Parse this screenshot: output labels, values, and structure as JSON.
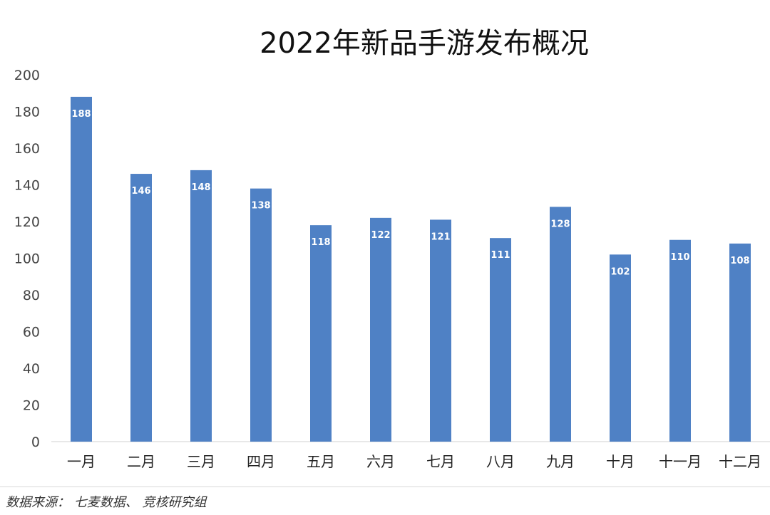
{
  "chart_data": {
    "type": "bar",
    "title": "2022年新品手游发布概况",
    "categories": [
      "一月",
      "二月",
      "三月",
      "四月",
      "五月",
      "六月",
      "七月",
      "八月",
      "九月",
      "十月",
      "十一月",
      "十二月"
    ],
    "values": [
      188,
      146,
      148,
      138,
      118,
      122,
      121,
      111,
      128,
      102,
      110,
      108
    ],
    "ylim": [
      0,
      200
    ],
    "yticks": [
      0,
      20,
      40,
      60,
      80,
      100,
      120,
      140,
      160,
      180,
      200
    ],
    "grid": false,
    "legend": "none",
    "bar_color": "#4f81c5",
    "data_label_color": "#ffffff"
  },
  "source": "数据来源： 七麦数据、 竞核研究组"
}
